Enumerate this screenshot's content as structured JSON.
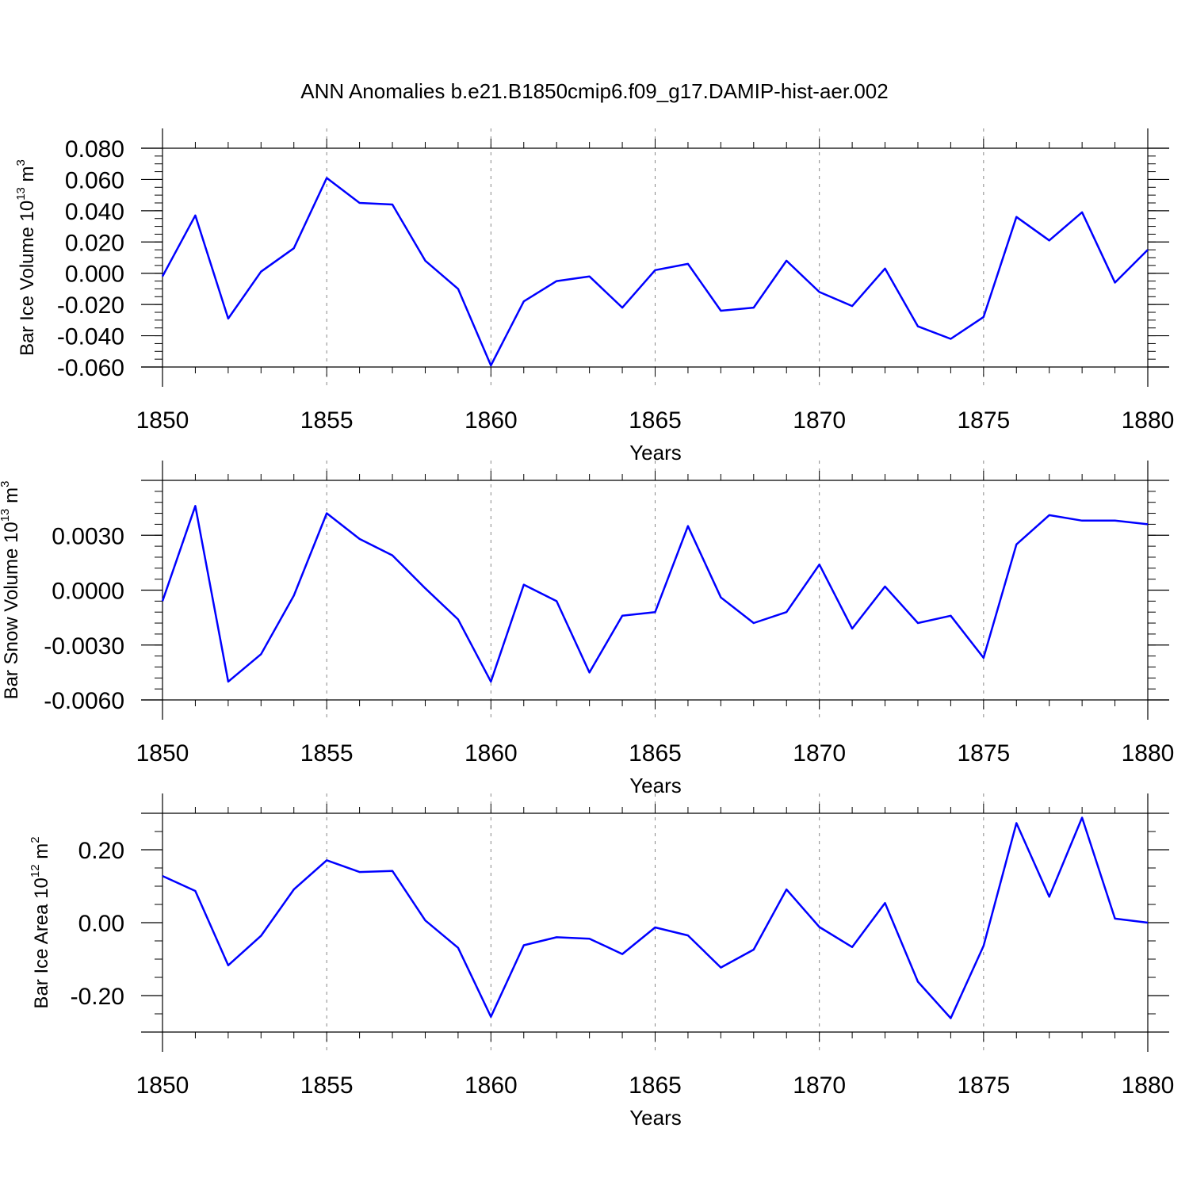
{
  "title": "ANN Anomalies b.e21.B1850cmip6.f09_g17.DAMIP-hist-aer.002",
  "line_color": "#0000ff",
  "grid_color": "#888888",
  "chart_data": [
    {
      "type": "line",
      "ylabel": "Bar Ice Volume 10",
      "ylabel_exp": "13",
      "ylabel_unit": " m",
      "ylabel_unit_exp": "3",
      "xlabel": "Years",
      "xlim": [
        1850,
        1880
      ],
      "ylim": [
        -0.06,
        0.08
      ],
      "xticks": [
        "1850",
        "1855",
        "1860",
        "1865",
        "1870",
        "1875",
        "1880"
      ],
      "yticks": [
        -0.06,
        -0.04,
        -0.02,
        0.0,
        0.02,
        0.04,
        0.06,
        0.08
      ],
      "ytick_labels": [
        "-0.060",
        "-0.040",
        "-0.020",
        "0.000",
        "0.020",
        "0.040",
        "0.060",
        "0.080"
      ],
      "grid": "vertical dashed at major x ticks",
      "series": [
        {
          "x": [
            1850,
            1851,
            1852,
            1853,
            1854,
            1855,
            1856,
            1857,
            1858,
            1859,
            1860,
            1861,
            1862,
            1863,
            1864,
            1865,
            1866,
            1867,
            1868,
            1869,
            1870,
            1871,
            1872,
            1873,
            1874,
            1875,
            1876,
            1877,
            1878,
            1879,
            1880
          ],
          "values": [
            -0.002,
            0.037,
            -0.029,
            0.001,
            0.016,
            0.061,
            0.045,
            0.044,
            0.008,
            -0.01,
            -0.059,
            -0.018,
            -0.005,
            -0.002,
            -0.022,
            0.002,
            0.006,
            -0.024,
            -0.022,
            0.008,
            -0.012,
            -0.021,
            0.003,
            -0.034,
            -0.042,
            -0.028,
            0.036,
            0.021,
            0.039,
            -0.006,
            0.015
          ]
        }
      ]
    },
    {
      "type": "line",
      "ylabel": "Bar Snow Volume 10",
      "ylabel_exp": "13",
      "ylabel_unit": " m",
      "ylabel_unit_exp": "3",
      "xlabel": "Years",
      "xlim": [
        1850,
        1880
      ],
      "ylim": [
        -0.006,
        0.006
      ],
      "xticks": [
        "1850",
        "1855",
        "1860",
        "1865",
        "1870",
        "1875",
        "1880"
      ],
      "yticks": [
        -0.006,
        -0.003,
        0.0,
        0.003
      ],
      "ytick_labels": [
        "-0.0060",
        "-0.0030",
        "0.0000",
        "0.0030"
      ],
      "grid": "vertical dashed at major x ticks",
      "series": [
        {
          "x": [
            1850,
            1851,
            1852,
            1853,
            1854,
            1855,
            1856,
            1857,
            1858,
            1859,
            1860,
            1861,
            1862,
            1863,
            1864,
            1865,
            1866,
            1867,
            1868,
            1869,
            1870,
            1871,
            1872,
            1873,
            1874,
            1875,
            1876,
            1877,
            1878,
            1879,
            1880
          ],
          "values": [
            -0.0006,
            0.0046,
            -0.005,
            -0.0035,
            -0.0003,
            0.0042,
            0.0028,
            0.0019,
            0.0001,
            -0.0016,
            -0.005,
            0.0003,
            -0.0006,
            -0.0045,
            -0.0014,
            -0.0012,
            0.0035,
            -0.0004,
            -0.0018,
            -0.0012,
            0.0014,
            -0.0021,
            0.0002,
            -0.0018,
            -0.0014,
            -0.0037,
            0.0025,
            0.0041,
            0.0038,
            0.0038,
            0.0036
          ]
        }
      ]
    },
    {
      "type": "line",
      "ylabel": "Bar Ice Area 10",
      "ylabel_exp": "12",
      "ylabel_unit": " m",
      "ylabel_unit_exp": "2",
      "xlabel": "Years",
      "xlim": [
        1850,
        1880
      ],
      "ylim": [
        -0.3,
        0.3
      ],
      "xticks": [
        "1850",
        "1855",
        "1860",
        "1865",
        "1870",
        "1875",
        "1880"
      ],
      "yticks": [
        -0.2,
        0.0,
        0.2
      ],
      "ytick_labels": [
        "-0.20",
        "0.00",
        "0.20"
      ],
      "grid": "vertical dashed at major x ticks",
      "series": [
        {
          "x": [
            1850,
            1851,
            1852,
            1853,
            1854,
            1855,
            1856,
            1857,
            1858,
            1859,
            1860,
            1861,
            1862,
            1863,
            1864,
            1865,
            1866,
            1867,
            1868,
            1869,
            1870,
            1871,
            1872,
            1873,
            1874,
            1875,
            1876,
            1877,
            1878,
            1879,
            1880
          ],
          "values": [
            0.128,
            0.087,
            -0.117,
            -0.036,
            0.091,
            0.171,
            0.139,
            0.142,
            0.006,
            -0.069,
            -0.258,
            -0.062,
            -0.04,
            -0.044,
            -0.086,
            -0.013,
            -0.035,
            -0.123,
            -0.074,
            0.091,
            -0.012,
            -0.067,
            0.054,
            -0.162,
            -0.262,
            -0.064,
            0.273,
            0.071,
            0.288,
            0.011,
            0.0
          ]
        }
      ]
    }
  ]
}
